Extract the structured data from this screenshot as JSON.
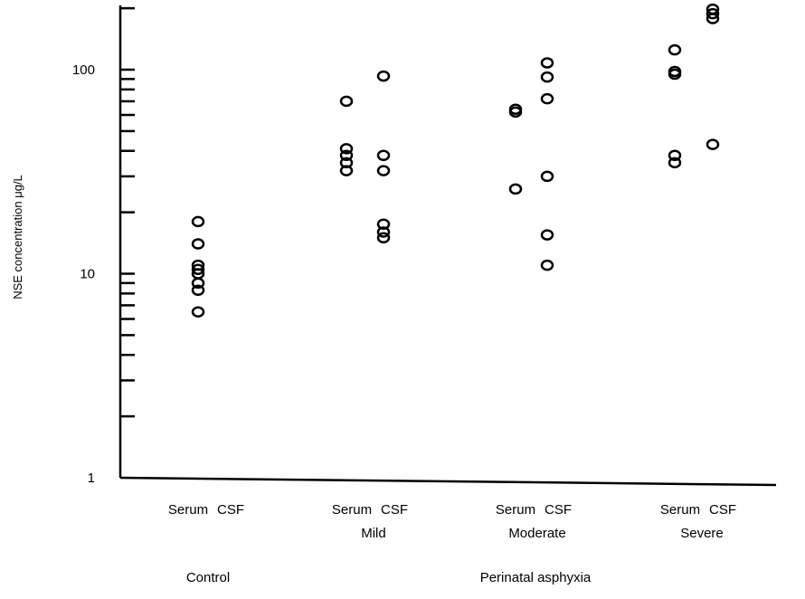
{
  "chart_data": {
    "type": "scatter",
    "ylabel": "NSE concentration μg/L",
    "yscale": "log",
    "ylim": [
      1,
      220
    ],
    "yticks_labeled": [
      {
        "value": 1,
        "label": "1"
      },
      {
        "value": 10,
        "label": "10"
      },
      {
        "value": 100,
        "label": "100"
      }
    ],
    "yticks_minor": [
      2,
      3,
      4,
      5,
      6,
      7,
      8,
      9,
      20,
      30,
      40,
      50,
      60,
      70,
      80,
      90,
      200
    ],
    "grid": false,
    "legend": "none",
    "columns": [
      {
        "fluid": "Serum",
        "group": "Control",
        "values": [
          18,
          14,
          11,
          10.5,
          10,
          9,
          8.3,
          6.5
        ]
      },
      {
        "fluid": "CSF",
        "group": "Control",
        "values": []
      },
      {
        "fluid": "Serum",
        "group": "Mild",
        "values": [
          70,
          41,
          38,
          35,
          32
        ]
      },
      {
        "fluid": "CSF",
        "group": "Mild",
        "values": [
          93,
          38,
          32,
          17.5,
          16,
          15
        ]
      },
      {
        "fluid": "Serum",
        "group": "Moderate",
        "values": [
          64,
          62,
          26
        ]
      },
      {
        "fluid": "CSF",
        "group": "Moderate",
        "values": [
          108,
          92,
          72,
          30,
          15.5,
          11
        ]
      },
      {
        "fluid": "Serum",
        "group": "Severe",
        "values": [
          125,
          98,
          95,
          38,
          35
        ]
      },
      {
        "fluid": "CSF",
        "group": "Severe",
        "values": [
          198,
          188,
          178,
          43
        ]
      }
    ],
    "groups": [
      {
        "name": "Control",
        "serum_label": "Serum",
        "csf_label": "CSF",
        "sublabel": ""
      },
      {
        "name": "Mild",
        "serum_label": "Serum",
        "csf_label": "CSF",
        "sublabel": "Mild"
      },
      {
        "name": "Moderate",
        "serum_label": "Serum",
        "csf_label": "CSF",
        "sublabel": "Moderate"
      },
      {
        "name": "Severe",
        "serum_label": "Serum",
        "csf_label": "CSF",
        "sublabel": "Severe"
      }
    ],
    "group_headers": [
      {
        "label": "Control",
        "spans": [
          "Control"
        ]
      },
      {
        "label": "Perinatal asphyxia",
        "spans": [
          "Mild",
          "Moderate",
          "Severe"
        ]
      }
    ]
  }
}
